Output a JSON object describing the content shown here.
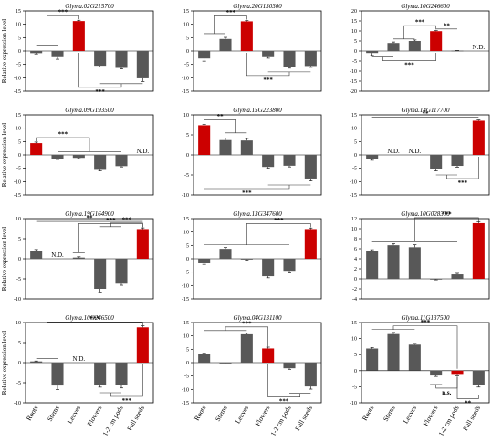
{
  "figure": {
    "ylabel": "Relative expression level",
    "categories": [
      "Roots",
      "Stems",
      "Leaves",
      "Flowers",
      "1-2 cm pods",
      "Full seeds"
    ]
  },
  "colors": {
    "bar": "#585858",
    "highlight": "#cc0000",
    "axis": "#000000",
    "bracket": "#333333"
  },
  "chart_data": [
    {
      "type": "bar",
      "title": "Glyma.02G215700",
      "ylim": [
        -15,
        15
      ],
      "yticks": [
        -15,
        -10,
        -5,
        0,
        5,
        10,
        15
      ],
      "categories": [
        "Roots",
        "Stems",
        "Leaves",
        "Flowers",
        "1-2 cm pods",
        "Full seeds"
      ],
      "values": [
        -0.8,
        -2.3,
        11.2,
        -5.5,
        -6.3,
        -10.2
      ],
      "errors": [
        0.3,
        0.8,
        0.3,
        0.5,
        0.4,
        1.2
      ],
      "highlight": 2,
      "labels": [],
      "annotations": [
        {
          "text": "***",
          "type": "bracket",
          "x": [
            0.0,
            1.0
          ],
          "top": 2.2,
          "main": 2
        },
        {
          "text": "***",
          "type": "bracket_below",
          "x": [
            3.0,
            5.0
          ],
          "bottom": -12.2,
          "main": 2
        }
      ]
    },
    {
      "type": "bar",
      "title": "Glyma.20G130300",
      "ylim": [
        -15,
        15
      ],
      "yticks": [
        -15,
        -10,
        -5,
        0,
        5,
        10,
        15
      ],
      "categories": [
        "Roots",
        "Stems",
        "Leaves",
        "Flowers",
        "1-2 cm pods",
        "Full seeds"
      ],
      "values": [
        -2.8,
        4.5,
        11.1,
        -2.3,
        -5.9,
        -5.6
      ],
      "errors": [
        1.0,
        0.6,
        0.3,
        0.4,
        0.5,
        0.5
      ],
      "highlight": 2,
      "labels": [],
      "annotations": [
        {
          "text": "***",
          "type": "bracket",
          "x": [
            0.0,
            1.0
          ],
          "top": 6.5,
          "main": 2
        },
        {
          "text": "***",
          "type": "bracket_below",
          "x": [
            3.0,
            5.0
          ],
          "bottom": -7.8,
          "main": 2
        }
      ]
    },
    {
      "type": "bar",
      "title": "Glyma.10G246600",
      "ylim": [
        -20,
        20
      ],
      "yticks": [
        -20,
        -15,
        -10,
        -5,
        0,
        5,
        10,
        15,
        20
      ],
      "categories": [
        "Roots",
        "Stems",
        "Leaves",
        "Flowers",
        "1-2 cm pods",
        "Full seeds"
      ],
      "values": [
        -1.0,
        4.0,
        5.0,
        9.9,
        0.2,
        0
      ],
      "errors": [
        1.2,
        0.5,
        0.5,
        0.3,
        0.1,
        0
      ],
      "highlight": 3,
      "labels": [
        {
          "index": 5,
          "text": "N.D."
        }
      ],
      "annotations": [
        {
          "text": "***",
          "type": "bracket",
          "x": [
            1.0,
            2.0
          ],
          "top": 6.0,
          "main": 3
        },
        {
          "text": "**",
          "type": "line",
          "x": [
            3.0,
            4.0
          ],
          "y": 11.0
        },
        {
          "text": "***",
          "type": "bracket_below",
          "x": [
            0.0,
            1.0
          ],
          "bottom": -3.0,
          "main": 3
        }
      ]
    },
    {
      "type": "bar",
      "title": "Glyma.09G193500",
      "ylim": [
        -15,
        15
      ],
      "yticks": [
        -15,
        -10,
        -5,
        0,
        5,
        10,
        15
      ],
      "categories": [
        "Roots",
        "Stems",
        "Leaves",
        "Flowers",
        "1-2 cm pods",
        "Full seeds"
      ],
      "values": [
        4.4,
        -1.4,
        -1.1,
        -5.6,
        -4.2,
        0
      ],
      "errors": [
        0.4,
        0.3,
        0.3,
        0.4,
        0.3,
        0
      ],
      "highlight": 0,
      "labels": [
        {
          "index": 5,
          "text": "N.D."
        }
      ],
      "annotations": [
        {
          "text": "***",
          "type": "bracket",
          "x": [
            1.0,
            4.0
          ],
          "top": 1.2,
          "main": 0
        }
      ]
    },
    {
      "type": "bar",
      "title": "Glyma.15G223800",
      "ylim": [
        -10,
        10
      ],
      "yticks": [
        -10,
        -5,
        0,
        5,
        10
      ],
      "categories": [
        "Roots",
        "Stems",
        "Leaves",
        "Flowers",
        "1-2 cm pods",
        "Full seeds"
      ],
      "values": [
        7.4,
        3.7,
        3.6,
        -3.0,
        -2.7,
        -5.9
      ],
      "errors": [
        0.2,
        0.5,
        0.5,
        0.3,
        0.3,
        0.6
      ],
      "highlight": 0,
      "labels": [],
      "annotations": [
        {
          "text": "**",
          "type": "bracket",
          "x": [
            1.0,
            2.0
          ],
          "top": 5.5,
          "main": 0
        },
        {
          "text": "***",
          "type": "bracket_below",
          "x": [
            3.0,
            5.0
          ],
          "bottom": -7.5,
          "main": 0
        }
      ]
    },
    {
      "type": "bar",
      "title": "Glyma.14G117700",
      "ylim": [
        -15,
        15
      ],
      "yticks": [
        -15,
        -10,
        -5,
        0,
        5,
        10,
        15
      ],
      "categories": [
        "Roots",
        "Stems",
        "Leaves",
        "Flowers",
        "1-2 cm pods",
        "Full seeds"
      ],
      "values": [
        -1.7,
        0,
        0,
        -5.4,
        -4.1,
        12.8
      ],
      "errors": [
        0.3,
        0,
        0,
        0.6,
        0.5,
        0.3
      ],
      "highlight": 5,
      "labels": [
        {
          "index": 1,
          "text": "N.D."
        },
        {
          "index": 2,
          "text": "N.D."
        }
      ],
      "annotations": [
        {
          "text": "**",
          "type": "line",
          "x": [
            0.0,
            5.0
          ],
          "y": 14.2
        },
        {
          "text": "***",
          "type": "bracket_below",
          "x": [
            3.0,
            4.0
          ],
          "bottom": -7.5,
          "main": 5
        }
      ]
    },
    {
      "type": "bar",
      "title": "Glyma.19G164900",
      "ylim": [
        -10,
        10
      ],
      "yticks": [
        -10,
        -5,
        0,
        5,
        10
      ],
      "categories": [
        "Roots",
        "Stems",
        "Leaves",
        "Flowers",
        "1-2 cm pods",
        "Full seeds"
      ],
      "values": [
        2.0,
        0,
        0.3,
        -7.5,
        -6.2,
        7.4
      ],
      "errors": [
        0.3,
        0,
        0.2,
        1.0,
        0.4,
        0.3
      ],
      "highlight": 5,
      "labels": [
        {
          "index": 1,
          "text": "N.D."
        }
      ],
      "annotations": [
        {
          "text": "**",
          "type": "line",
          "x": [
            0.0,
            5.0
          ],
          "y": 9.3
        },
        {
          "text": "***",
          "type": "bracket",
          "x": [
            3.0,
            4.0
          ],
          "top": 8.0,
          "main": 5
        },
        {
          "text": "***",
          "type": "bracket",
          "x": [
            2.0,
            2.0
          ],
          "top": 1.5,
          "main": 5
        }
      ]
    },
    {
      "type": "bar",
      "title": "Glyma.13G347600",
      "ylim": [
        -15,
        15
      ],
      "yticks": [
        -15,
        -10,
        -5,
        0,
        5,
        10,
        15
      ],
      "categories": [
        "Roots",
        "Stems",
        "Leaves",
        "Flowers",
        "1-2 cm pods",
        "Full seeds"
      ],
      "values": [
        -1.7,
        3.7,
        -0.3,
        -6.5,
        -4.5,
        11.1
      ],
      "errors": [
        0.4,
        0.5,
        0.2,
        0.6,
        0.8,
        0.4
      ],
      "highlight": 5,
      "labels": [],
      "annotations": [
        {
          "text": "***",
          "type": "bracket",
          "x": [
            0.0,
            4.0
          ],
          "top": 5.2,
          "main": 5
        }
      ]
    },
    {
      "type": "bar",
      "title": "Glyma.10G028300",
      "ylim": [
        -4,
        12
      ],
      "yticks": [
        -4,
        -2,
        0,
        2,
        4,
        6,
        8,
        10,
        12
      ],
      "categories": [
        "Roots",
        "Stems",
        "Leaves",
        "Flowers",
        "1-2 cm pods",
        "Full seeds"
      ],
      "values": [
        5.5,
        6.7,
        6.3,
        -0.1,
        0.9,
        11.1
      ],
      "errors": [
        0.3,
        0.3,
        0.5,
        0.1,
        0.2,
        0.3
      ],
      "highlight": 5,
      "labels": [],
      "annotations": [
        {
          "text": "***",
          "type": "bracket",
          "x": [
            0.0,
            4.0
          ],
          "top": 7.4,
          "main": 5
        }
      ]
    },
    {
      "type": "bar",
      "title": "Glyma.10G246500",
      "ylim": [
        -10,
        10
      ],
      "yticks": [
        -10,
        -5,
        0,
        5,
        10
      ],
      "categories": [
        "Roots",
        "Stems",
        "Leaves",
        "Flowers",
        "1-2 cm pods",
        "Full seeds"
      ],
      "values": [
        0.3,
        -5.7,
        0,
        -5.5,
        -5.6,
        8.8
      ],
      "errors": [
        0.1,
        1.0,
        0,
        0.6,
        0.7,
        0.4
      ],
      "highlight": 5,
      "labels": [
        {
          "index": 2,
          "text": "N.D."
        }
      ],
      "annotations": [
        {
          "text": "***",
          "type": "bracket",
          "x": [
            0.0,
            1.0
          ],
          "top": 1.0,
          "main": 5
        },
        {
          "text": "***",
          "type": "bracket_below",
          "x": [
            3.0,
            4.0
          ],
          "bottom": -7.5,
          "main": 5
        }
      ]
    },
    {
      "type": "bar",
      "title": "Glyma.04G131100",
      "ylim": [
        -15,
        15
      ],
      "yticks": [
        -15,
        -10,
        -5,
        0,
        5,
        10,
        15
      ],
      "categories": [
        "Roots",
        "Stems",
        "Leaves",
        "Flowers",
        "1-2 cm pods",
        "Full seeds"
      ],
      "values": [
        3.2,
        -0.3,
        10.6,
        5.3,
        -2.1,
        -8.9
      ],
      "errors": [
        0.3,
        0.2,
        0.4,
        0.5,
        0.4,
        1.0
      ],
      "highlight": 3,
      "labels": [],
      "annotations": [
        {
          "text": "***",
          "type": "bracket",
          "x": [
            0.0,
            2.0
          ],
          "top": 12.0,
          "main": 3
        },
        {
          "text": "***",
          "type": "bracket_below",
          "x": [
            4.0,
            5.0
          ],
          "bottom": -11.5,
          "main": 3
        }
      ]
    },
    {
      "type": "bar",
      "title": "Glyma.11G137500",
      "ylim": [
        -10,
        15
      ],
      "yticks": [
        -10,
        -5,
        0,
        5,
        10,
        15
      ],
      "categories": [
        "Roots",
        "Stems",
        "Leaves",
        "Flowers",
        "1-2 cm pods",
        "Full seeds"
      ],
      "values": [
        6.9,
        11.4,
        8.1,
        -1.5,
        -1.3,
        -4.6
      ],
      "errors": [
        0.3,
        0.5,
        0.4,
        0.3,
        0.3,
        0.5
      ],
      "highlight": 4,
      "labels": [],
      "annotations": [
        {
          "text": "***",
          "type": "bracket",
          "x": [
            0.0,
            2.0
          ],
          "top": 12.8,
          "main": 4
        },
        {
          "text": "n.s.",
          "type": "bracket_below",
          "x": [
            3.0,
            3.0
          ],
          "bottom": -4.3,
          "main": 4
        },
        {
          "text": "**",
          "type": "bracket_below",
          "x": [
            5.0,
            5.0
          ],
          "bottom": -7.6,
          "main": 4
        }
      ]
    }
  ]
}
